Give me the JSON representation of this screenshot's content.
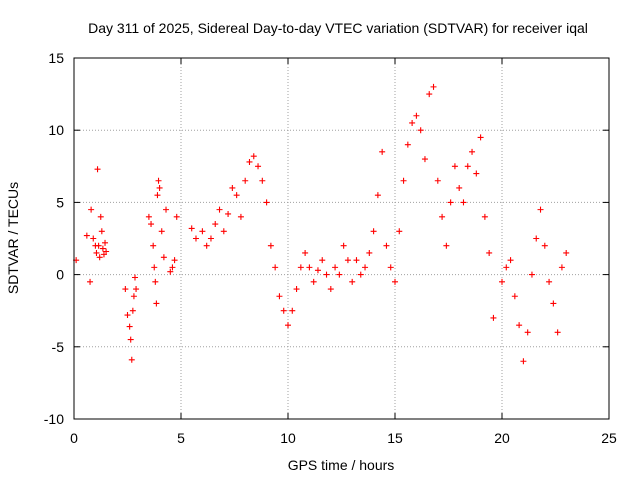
{
  "chart_data": {
    "type": "scatter",
    "title": "Day 311 of 2025, Sidereal Day-to-day VTEC variation (SDTVAR) for receiver iqal",
    "xlabel": "GPS time / hours",
    "ylabel": "SDTVAR / TECUs",
    "xlim": [
      0,
      25
    ],
    "ylim": [
      -10,
      15
    ],
    "xticks": [
      0,
      5,
      10,
      15,
      20,
      25
    ],
    "yticks": [
      -10,
      -5,
      0,
      5,
      10,
      15
    ],
    "xtick_labels": [
      "0",
      "5",
      "10",
      "15",
      "20",
      "25"
    ],
    "ytick_labels": [
      "-10",
      "-5",
      "0",
      "5",
      "10",
      "15"
    ],
    "grid": true,
    "marker": "+",
    "color": "#ff0000",
    "series": [
      {
        "name": "SDTVAR",
        "x": [
          0.1,
          0.6,
          0.75,
          0.8,
          0.9,
          1.0,
          1.05,
          1.1,
          1.15,
          1.2,
          1.25,
          1.3,
          1.35,
          1.4,
          1.45,
          1.5,
          2.4,
          2.5,
          2.6,
          2.65,
          2.7,
          2.75,
          2.8,
          2.85,
          2.9,
          3.5,
          3.6,
          3.7,
          3.75,
          3.8,
          3.85,
          3.9,
          3.95,
          4.0,
          4.1,
          4.2,
          4.3,
          4.5,
          4.6,
          4.7,
          4.8,
          5.5,
          5.7,
          6.0,
          6.2,
          6.4,
          6.6,
          6.8,
          7.0,
          7.2,
          7.4,
          7.6,
          7.8,
          8.0,
          8.2,
          8.4,
          8.6,
          8.8,
          9.0,
          9.2,
          9.4,
          9.6,
          9.8,
          10.0,
          10.2,
          10.4,
          10.6,
          10.8,
          11.0,
          11.2,
          11.4,
          11.6,
          11.8,
          12.0,
          12.2,
          12.4,
          12.6,
          12.8,
          13.0,
          13.2,
          13.4,
          13.6,
          13.8,
          14.0,
          14.2,
          14.4,
          14.6,
          14.8,
          15.0,
          15.2,
          15.4,
          15.6,
          15.8,
          16.0,
          16.2,
          16.4,
          16.6,
          16.8,
          17.0,
          17.2,
          17.4,
          17.6,
          17.8,
          18.0,
          18.2,
          18.4,
          18.6,
          18.8,
          19.0,
          19.2,
          19.4,
          19.6,
          20.0,
          20.2,
          20.4,
          20.6,
          20.8,
          21.0,
          21.2,
          21.4,
          21.6,
          21.8,
          22.0,
          22.2,
          22.4,
          22.6,
          22.8,
          23.0
        ],
        "y": [
          1.0,
          2.7,
          -0.5,
          4.5,
          2.5,
          2.0,
          1.5,
          7.3,
          2.0,
          1.2,
          4.0,
          3.0,
          1.8,
          1.4,
          2.2,
          1.6,
          -1.0,
          -2.8,
          -3.6,
          -4.5,
          -5.9,
          -2.5,
          -1.5,
          -0.2,
          -1.0,
          4.0,
          3.5,
          2.0,
          0.5,
          -0.5,
          -2.0,
          5.5,
          6.5,
          6.0,
          3.0,
          1.2,
          4.5,
          0.2,
          0.5,
          1.0,
          4.0,
          3.2,
          2.5,
          3.0,
          2.0,
          2.5,
          3.5,
          4.5,
          3.0,
          4.2,
          6.0,
          5.5,
          4.0,
          6.5,
          7.8,
          8.2,
          7.5,
          6.5,
          5.0,
          2.0,
          0.5,
          -1.5,
          -2.5,
          -3.5,
          -2.5,
          -1.0,
          0.5,
          1.5,
          0.5,
          -0.5,
          0.3,
          1.0,
          0.0,
          -1.0,
          0.5,
          0.0,
          2.0,
          1.0,
          -0.5,
          1.0,
          0.0,
          0.5,
          1.5,
          3.0,
          5.5,
          8.5,
          2.0,
          0.5,
          -0.5,
          3.0,
          6.5,
          9.0,
          10.5,
          11.0,
          10.0,
          8.0,
          12.5,
          13.0,
          6.5,
          4.0,
          2.0,
          5.0,
          7.5,
          6.0,
          5.0,
          7.5,
          8.5,
          7.0,
          9.5,
          4.0,
          1.5,
          -3.0,
          -0.5,
          0.5,
          1.0,
          -1.5,
          -3.5,
          -6.0,
          -4.0,
          0.0,
          2.5,
          4.5,
          2.0,
          -0.5,
          -2.0,
          -4.0,
          0.5,
          1.5
        ]
      }
    ]
  }
}
